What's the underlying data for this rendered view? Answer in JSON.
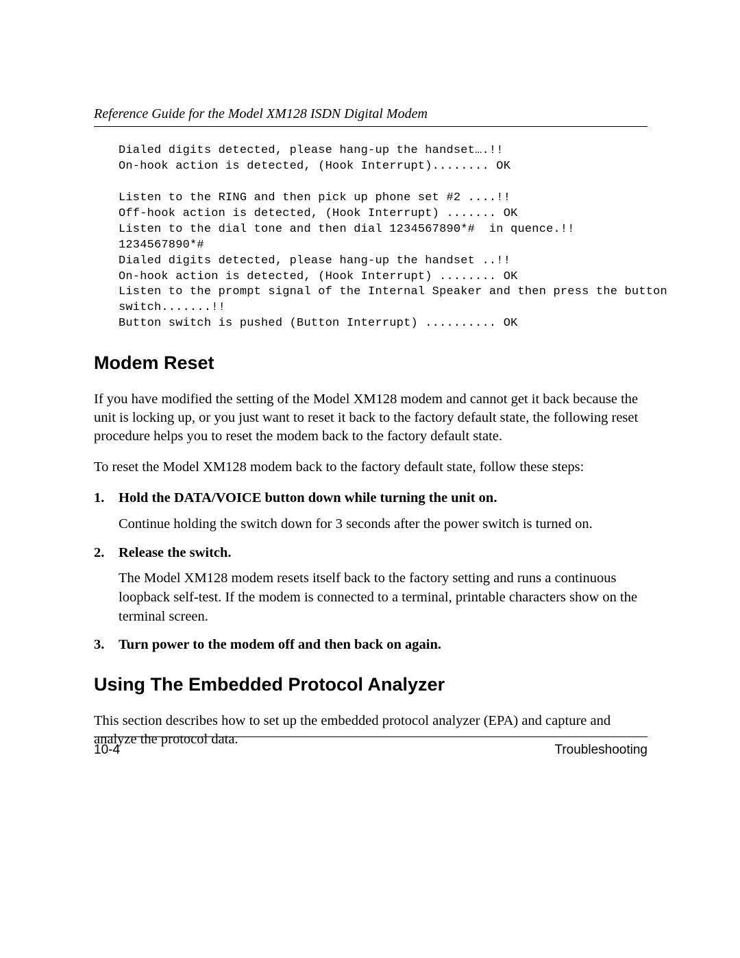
{
  "header": {
    "running_title": "Reference Guide for the Model XM128 ISDN Digital Modem"
  },
  "code": {
    "lines": [
      "Dialed digits detected, please hang-up the handset….!!",
      "On-hook action is detected, (Hook Interrupt)........ OK",
      "",
      "Listen to the RING and then pick up phone set #2 ....!!",
      "Off-hook action is detected, (Hook Interrupt) ....... OK",
      "Listen to the dial tone and then dial 1234567890*#  in quence.!!",
      "1234567890*#",
      "Dialed digits detected, please hang-up the handset ..!!",
      "On-hook action is detected, (Hook Interrupt) ........ OK",
      "Listen to the prompt signal of the Internal Speaker and then press the button",
      "switch.......!!",
      "Button switch is pushed (Button Interrupt) .......... OK"
    ]
  },
  "sections": {
    "modem_reset": {
      "heading": "Modem Reset",
      "para1": "If you have modified the setting of the Model XM128 modem and cannot get it back because the unit is locking up, or you just want to reset it back to the factory default state, the following reset procedure helps you to reset the modem back to the factory default state.",
      "para2": "To reset the Model XM128 modem back to the factory default state, follow these steps:",
      "steps": [
        {
          "num": "1.",
          "title": "Hold the DATA/VOICE button down while turning the unit on.",
          "desc": "Continue holding the switch down for 3 seconds after the power switch is turned on."
        },
        {
          "num": "2.",
          "title": "Release the switch.",
          "desc": "The Model XM128 modem resets itself back to the factory setting and runs a continuous loopback self-test. If the modem is connected to a terminal, printable characters show on the terminal screen."
        },
        {
          "num": "3.",
          "title": "Turn power to the modem off and then back on again.",
          "desc": ""
        }
      ]
    },
    "epa": {
      "heading": "Using The Embedded Protocol Analyzer",
      "para1": "This section describes how to set up the embedded protocol analyzer (EPA) and capture and analyze the protocol data."
    }
  },
  "footer": {
    "left": "10-4",
    "right": "Troubleshooting"
  }
}
